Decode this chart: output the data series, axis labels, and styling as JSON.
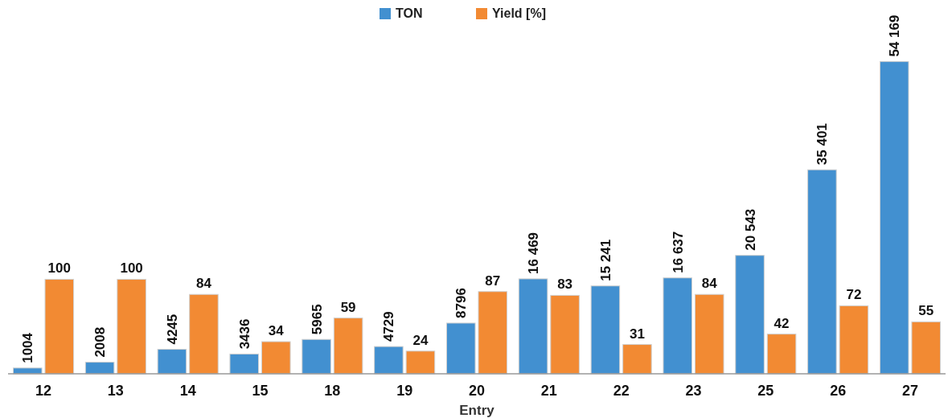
{
  "chart_data": {
    "type": "bar",
    "xlabel": "Entry",
    "categories": [
      "12",
      "13",
      "14",
      "15",
      "18",
      "19",
      "20",
      "21",
      "22",
      "23",
      "25",
      "26",
      "27"
    ],
    "series": [
      {
        "name": "TON",
        "color": "#4290d0",
        "values": [
          1004,
          2008,
          4245,
          3436,
          5965,
          4729,
          8796,
          16469,
          15241,
          16637,
          20543,
          35401,
          54169
        ],
        "value_labels": [
          "1004",
          "2008",
          "4245",
          "3436",
          "5965",
          "4729",
          "8796",
          "16 469",
          "15 241",
          "16 637",
          "20 543",
          "35 401",
          "54 169"
        ]
      },
      {
        "name": "Yield [%]",
        "color": "#f28a33",
        "axis": "y2",
        "values": [
          100,
          100,
          84,
          34,
          59,
          24,
          87,
          83,
          31,
          84,
          42,
          72,
          55
        ],
        "value_labels": [
          "100",
          "100",
          "84",
          "34",
          "59",
          "24",
          "87",
          "83",
          "31",
          "84",
          "42",
          "72",
          "55"
        ]
      }
    ],
    "tick_labels": "x",
    "legend": "top"
  }
}
